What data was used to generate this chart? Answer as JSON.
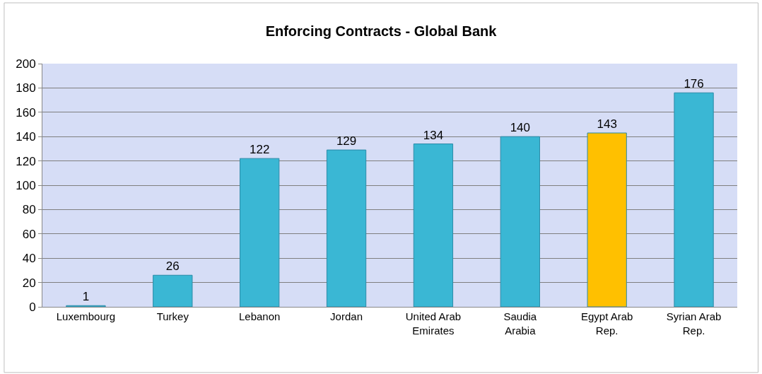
{
  "chart_data": {
    "type": "bar",
    "title": "Enforcing Contracts - Global Bank",
    "categories": [
      "Luxembourg",
      "Turkey",
      "Lebanon",
      "Jordan",
      "United Arab Emirates",
      "Saudia Arabia",
      "Egypt Arab Rep.",
      "Syrian Arab Rep."
    ],
    "values": [
      1,
      26,
      122,
      129,
      134,
      140,
      143,
      176
    ],
    "colors": [
      "#3ab7d4",
      "#3ab7d4",
      "#3ab7d4",
      "#3ab7d4",
      "#3ab7d4",
      "#3ab7d4",
      "#ffc000",
      "#3ab7d4"
    ],
    "ylim": [
      0,
      200
    ],
    "yticks": [
      0,
      20,
      40,
      60,
      80,
      100,
      120,
      140,
      160,
      180,
      200
    ],
    "grid": "y",
    "data_labels": true
  }
}
